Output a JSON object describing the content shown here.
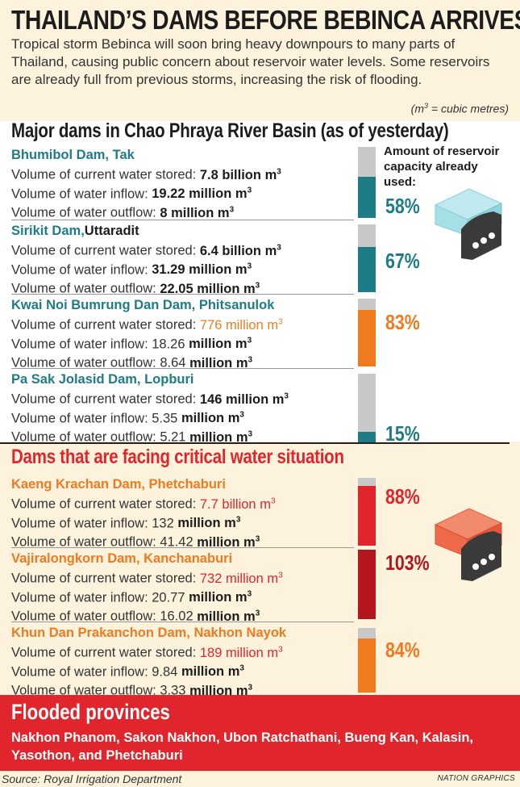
{
  "title": "THAILAND’S DAMS BEFORE BEBINCA ARRIVES",
  "intro": "Tropical storm Bebinca will soon bring heavy downpours to many parts of Thailand, causing public concern about reservoir water levels. Some reservoirs are already full from previous storms, increasing the risk of flooding.",
  "unit_note": {
    "prefix": "(m",
    "sup": "3",
    "suffix": " = cubic metres)"
  },
  "section1_title": "Major dams in Chao Phraya River Basin (as of yesterday)",
  "capacity_label": "Amount of reservoir capacity already used:",
  "section2_title": "Dams that are facing critical water situation",
  "labels": {
    "stored": "Volume of current water stored: ",
    "inflow": "Volume of water inflow: ",
    "outflow": "Volume of water outflow: ",
    "m3": "m",
    "sup3": "3"
  },
  "colors": {
    "teal": "#1d7c86",
    "orange": "#f07a1f",
    "red": "#e0252c",
    "dark_red": "#b5151c",
    "grey": "#c9c8c8"
  },
  "major_dams": [
    {
      "name": "Bhumibol Dam, Tak",
      "stored": "7.8 billion",
      "inflow": "19.22 million",
      "outflow": "8 million",
      "percent": "58%",
      "fraction": 0.58
    },
    {
      "name": "Sirikit Dam,",
      "name_bold": "Uttaradit",
      "stored": "6.4 billion",
      "inflow": "31.29 million",
      "outflow": "22.05 million",
      "percent": "67%",
      "fraction": 0.67
    },
    {
      "name": "Kwai Noi Bumrung Dan Dam, Phitsanulok",
      "stored": "776 million",
      "inflow": "18.26",
      "inflow_unit": "million",
      "outflow": "8.64",
      "outflow_unit": "million",
      "percent": "83%",
      "fraction": 0.83
    },
    {
      "name": "Pa Sak Jolasid Dam, Lopburi",
      "stored": "146 million",
      "inflow": "5.35",
      "inflow_unit": "million",
      "outflow": "5.21",
      "outflow_unit": "million",
      "percent": "15%",
      "fraction": 0.15
    }
  ],
  "critical_dams": [
    {
      "name": "Kaeng Krachan Dam, Phetchaburi",
      "stored": "7.7 billion",
      "inflow": "132",
      "inflow_unit": "million",
      "outflow": "41.42",
      "outflow_unit": "million",
      "percent": "88%",
      "fraction": 0.88
    },
    {
      "name": "Vajiralongkorn Dam, Kanchanaburi",
      "stored": "732 million",
      "inflow": "20.77",
      "inflow_unit": "million",
      "outflow": "16.02",
      "outflow_unit": "million",
      "percent": "103%",
      "fraction": 1.03
    },
    {
      "name": "Khun Dan Prakanchon Dam, Nakhon Nayok",
      "stored": "189 million",
      "inflow": "9.84",
      "inflow_unit": "million",
      "outflow": "3.33",
      "outflow_unit": "million",
      "percent": "84%",
      "fraction": 0.84
    }
  ],
  "flood": {
    "title": "Flooded provinces",
    "list": "Nakhon Phanom, Sakon Nakhon, Ubon Ratchathani, Bueng Kan, Kalasin, Yasothon, and Phetchaburi"
  },
  "source": "Source: Royal Irrigation Department",
  "credit": "NATION GRAPHICS"
}
